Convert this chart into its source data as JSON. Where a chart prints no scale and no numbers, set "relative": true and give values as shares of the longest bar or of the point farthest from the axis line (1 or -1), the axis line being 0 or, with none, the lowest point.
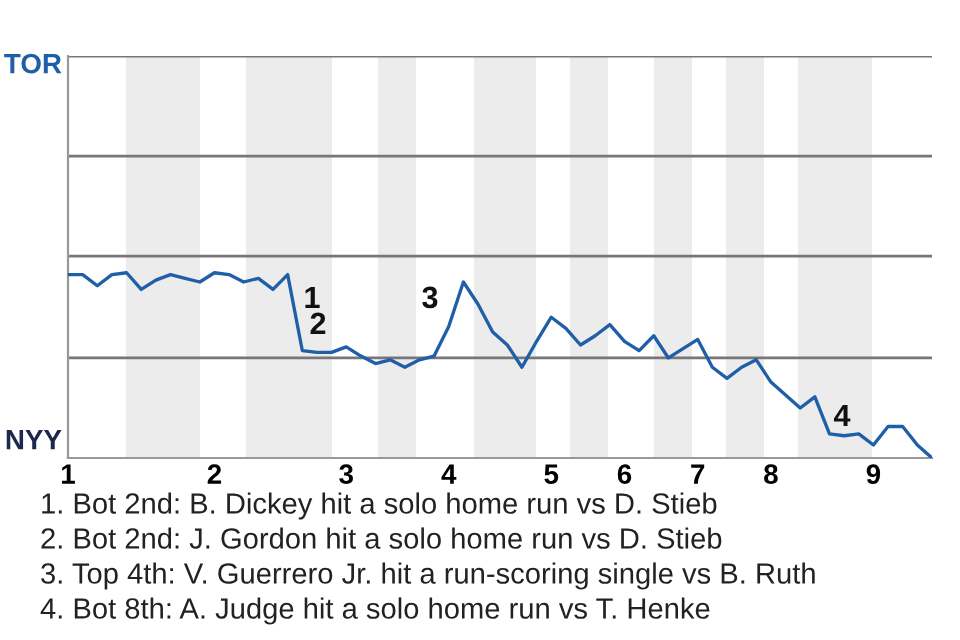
{
  "chart_data": {
    "type": "line",
    "relative": true,
    "categories": [
      "1",
      null,
      null,
      null,
      null,
      null,
      null,
      null,
      null,
      null,
      "2",
      null,
      null,
      null,
      null,
      null,
      null,
      null,
      null,
      "3",
      null,
      null,
      null,
      null,
      null,
      null,
      "4",
      null,
      null,
      null,
      null,
      null,
      null,
      "5",
      null,
      null,
      null,
      null,
      "6",
      null,
      null,
      null,
      null,
      "7",
      null,
      null,
      null,
      null,
      "8",
      null,
      null,
      null,
      null,
      null,
      null,
      "9",
      null,
      null,
      null,
      null
    ],
    "grid": false,
    "legend": false,
    "line_style": "solid",
    "series": [
      {
        "color": "#1f5fa8",
        "values": [
          0.99,
          0.99,
          0.93,
          0.99,
          1,
          0.91,
          0.96,
          0.99,
          0.97,
          0.95,
          1,
          0.99,
          0.95,
          0.97,
          0.91,
          0.99,
          0.58,
          0.57,
          0.57,
          0.6,
          0.55,
          0.51,
          0.53,
          0.49,
          0.53,
          0.55,
          0.71,
          0.95,
          0.83,
          0.68,
          0.61,
          0.49,
          0.63,
          0.76,
          0.7,
          0.61,
          0.66,
          0.72,
          0.63,
          0.58,
          0.66,
          0.54,
          0.59,
          0.64,
          0.49,
          0.43,
          0.49,
          0.53,
          0.41,
          0.34,
          0.27,
          0.33,
          0.13,
          0.12,
          0.13,
          0.07,
          0.17,
          0.17,
          0.07,
          0
        ]
      }
    ],
    "ref_lines": [
      {
        "axis": "y",
        "value": 0.54,
        "color": "#777777"
      },
      {
        "axis": "y",
        "value": 1.09,
        "color": "#777777"
      },
      {
        "axis": "y",
        "value": 1.63,
        "color": "#777777"
      },
      {
        "axis": "y",
        "value": 2.17,
        "color": "#777777"
      }
    ],
    "annotations": [
      "TOR",
      "NYY",
      "1",
      "2",
      "3",
      "4",
      "1. Bot 2nd: B. Dickey hit a solo home run vs D. Stieb",
      "2. Bot 2nd: J. Gordon hit a solo home run vs D. Stieb",
      "3. Top 4th: V. Guerrero Jr. hit a run-scoring single vs B. Ruth",
      "4. Bot 8th: A. Judge hit a solo home run vs T. Henke"
    ]
  }
}
